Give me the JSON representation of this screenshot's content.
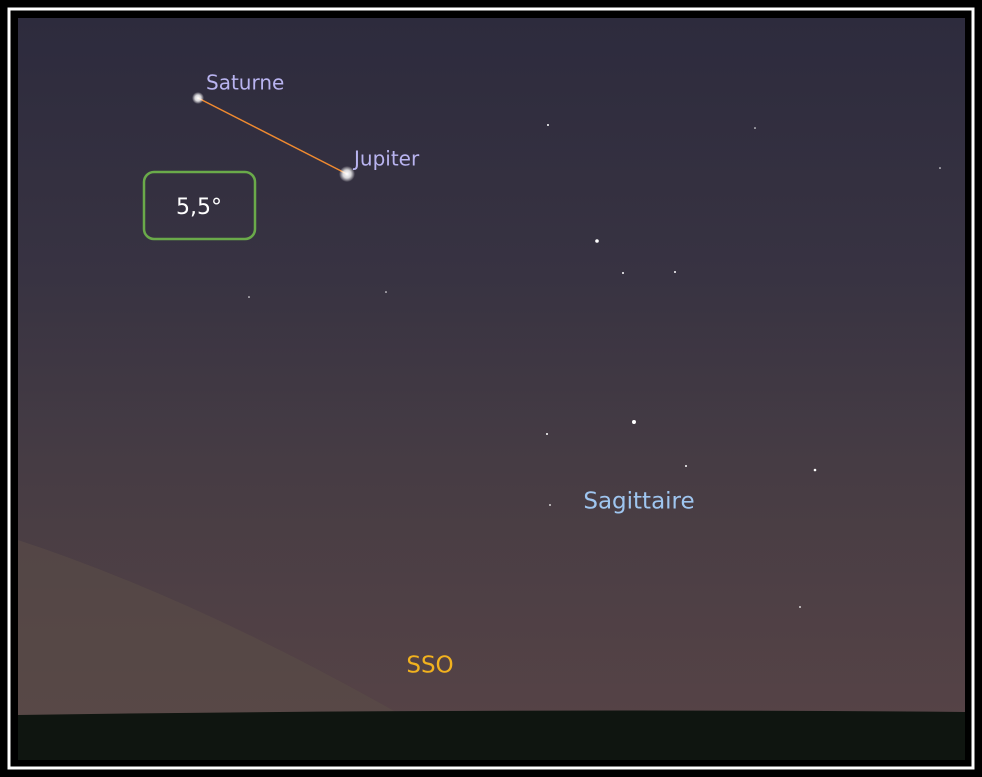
{
  "planets": [
    {
      "label": "Saturne"
    },
    {
      "label": "Jupiter"
    }
  ],
  "separation": "5,5°",
  "constellation": "Sagittaire",
  "direction": "SSO"
}
